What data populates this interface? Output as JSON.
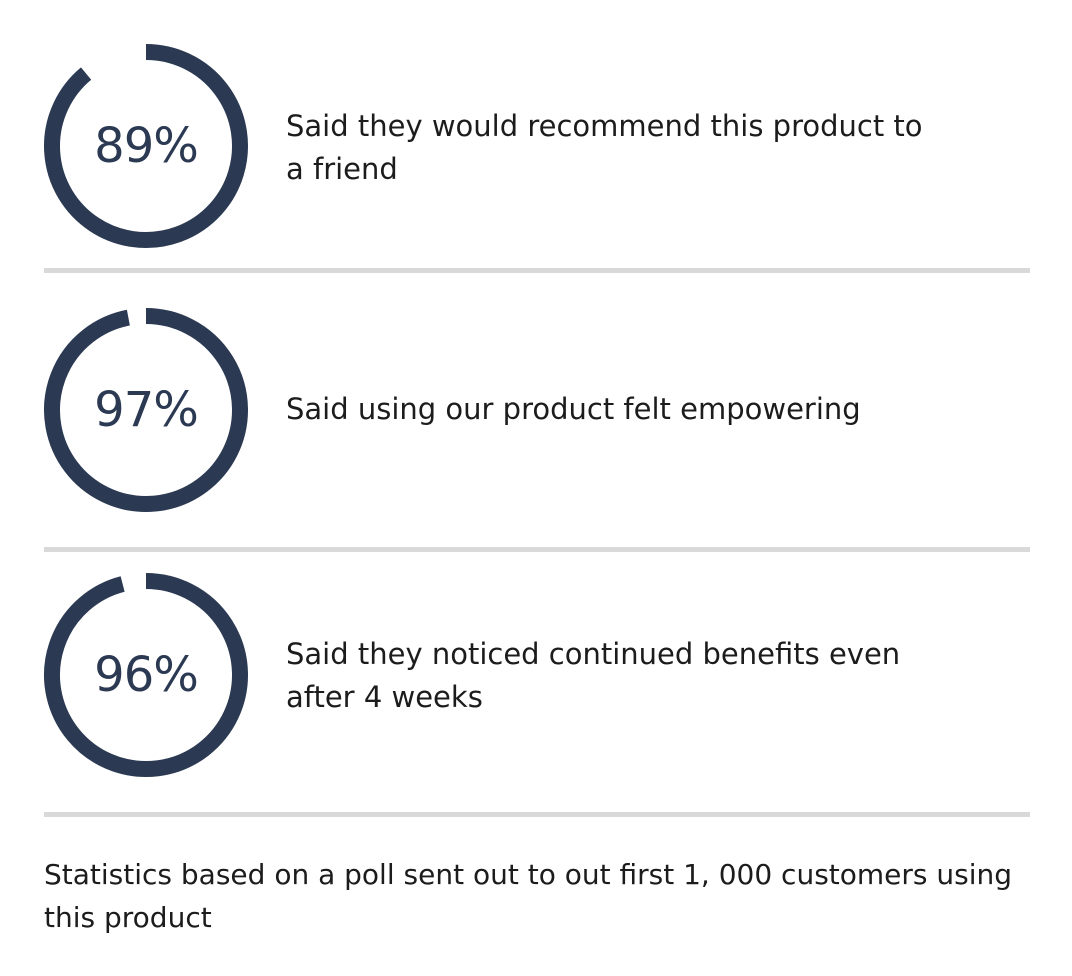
{
  "colors": {
    "ring": "#2b3a52",
    "divider": "#d9d9d9",
    "text": "#1c1c1c"
  },
  "stats": [
    {
      "percent_label": "89%",
      "value": 89,
      "description": "Said they would recommend this product to a friend"
    },
    {
      "percent_label": "97%",
      "value": 97,
      "description": "Said using our product felt empowering"
    },
    {
      "percent_label": "96%",
      "value": 96,
      "description": "Said they noticed continued benefits even after 4 weeks"
    }
  ],
  "footnote": "Statistics based on a poll sent out to out first 1, 000 customers using this product"
}
